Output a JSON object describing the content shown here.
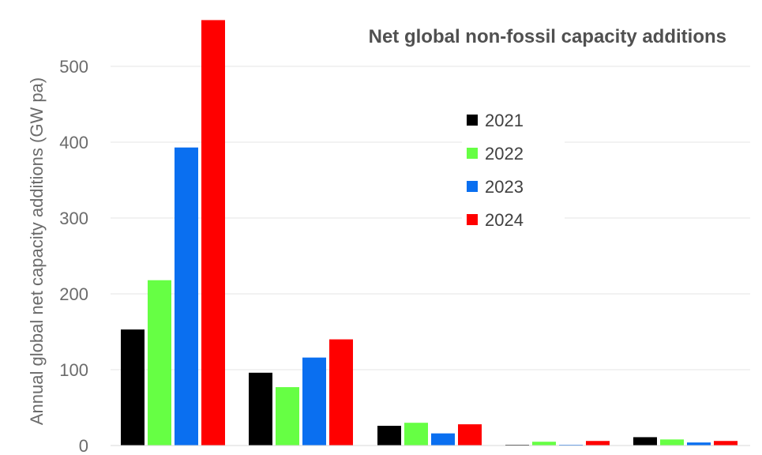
{
  "chart_data": {
    "type": "bar",
    "title": "Net global non-fossil capacity additions",
    "xlabel": "",
    "ylabel": "Annual global net capacity additions (GW pa)",
    "ylim": [
      0,
      560
    ],
    "yticks": [
      0,
      100,
      200,
      300,
      400,
      500
    ],
    "grid": true,
    "legend_position": "top-right",
    "categories": [
      "",
      "",
      "",
      "",
      ""
    ],
    "series": [
      {
        "name": "2021",
        "color": "#000000",
        "values": [
          153,
          96,
          26,
          1,
          11
        ]
      },
      {
        "name": "2022",
        "color": "#66ff44",
        "values": [
          218,
          77,
          30,
          5,
          8
        ]
      },
      {
        "name": "2023",
        "color": "#0a6ff0",
        "values": [
          393,
          116,
          16,
          1,
          4
        ]
      },
      {
        "name": "2024",
        "color": "#ff0000",
        "values": [
          561,
          140,
          28,
          6,
          6
        ]
      }
    ]
  }
}
